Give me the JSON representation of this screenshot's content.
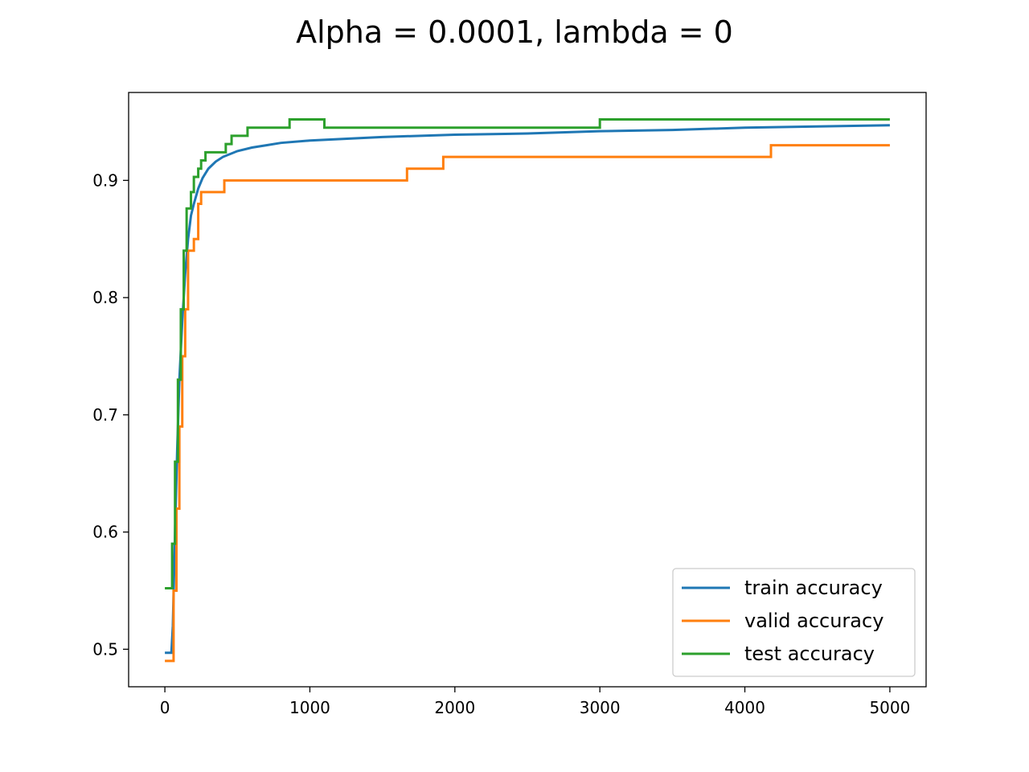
{
  "chart_data": {
    "type": "line",
    "title": "Alpha = 0.0001, lambda = 0",
    "xlabel": "",
    "ylabel": "",
    "xlim": [
      -250,
      5250
    ],
    "ylim": [
      0.468,
      0.975
    ],
    "x_ticks": [
      0,
      1000,
      2000,
      3000,
      4000,
      5000
    ],
    "x_tick_labels": [
      "0",
      "1000",
      "2000",
      "3000",
      "4000",
      "5000"
    ],
    "y_ticks": [
      0.5,
      0.6,
      0.7,
      0.8,
      0.9
    ],
    "y_tick_labels": [
      "0.5",
      "0.6",
      "0.7",
      "0.8",
      "0.9"
    ],
    "grid": false,
    "legend_position": "lower right",
    "series": [
      {
        "name": "train accuracy",
        "color": "#1f77b4",
        "step": false,
        "points": [
          [
            0,
            0.497
          ],
          [
            45,
            0.497
          ],
          [
            55,
            0.52
          ],
          [
            70,
            0.6
          ],
          [
            85,
            0.67
          ],
          [
            100,
            0.73
          ],
          [
            120,
            0.78
          ],
          [
            140,
            0.82
          ],
          [
            160,
            0.85
          ],
          [
            180,
            0.87
          ],
          [
            200,
            0.88
          ],
          [
            230,
            0.893
          ],
          [
            260,
            0.902
          ],
          [
            300,
            0.91
          ],
          [
            350,
            0.916
          ],
          [
            400,
            0.92
          ],
          [
            500,
            0.925
          ],
          [
            600,
            0.928
          ],
          [
            700,
            0.93
          ],
          [
            800,
            0.932
          ],
          [
            1000,
            0.934
          ],
          [
            1500,
            0.937
          ],
          [
            2000,
            0.939
          ],
          [
            2500,
            0.94
          ],
          [
            3000,
            0.942
          ],
          [
            3500,
            0.943
          ],
          [
            4000,
            0.945
          ],
          [
            4500,
            0.946
          ],
          [
            5000,
            0.947
          ]
        ]
      },
      {
        "name": "valid accuracy",
        "color": "#ff7f0e",
        "step": true,
        "points": [
          [
            0,
            0.49
          ],
          [
            60,
            0.49
          ],
          [
            60,
            0.55
          ],
          [
            80,
            0.62
          ],
          [
            100,
            0.69
          ],
          [
            120,
            0.75
          ],
          [
            140,
            0.79
          ],
          [
            160,
            0.84
          ],
          [
            200,
            0.85
          ],
          [
            230,
            0.88
          ],
          [
            250,
            0.89
          ],
          [
            410,
            0.9
          ],
          [
            1670,
            0.91
          ],
          [
            1920,
            0.92
          ],
          [
            4180,
            0.93
          ],
          [
            5000,
            0.93
          ]
        ]
      },
      {
        "name": "test accuracy",
        "color": "#2ca02c",
        "step": true,
        "points": [
          [
            0,
            0.552
          ],
          [
            50,
            0.552
          ],
          [
            50,
            0.59
          ],
          [
            70,
            0.66
          ],
          [
            90,
            0.73
          ],
          [
            110,
            0.79
          ],
          [
            130,
            0.84
          ],
          [
            150,
            0.876
          ],
          [
            180,
            0.89
          ],
          [
            200,
            0.903
          ],
          [
            230,
            0.91
          ],
          [
            250,
            0.917
          ],
          [
            280,
            0.924
          ],
          [
            420,
            0.931
          ],
          [
            460,
            0.938
          ],
          [
            570,
            0.945
          ],
          [
            860,
            0.952
          ],
          [
            1100,
            0.945
          ],
          [
            3000,
            0.952
          ],
          [
            5000,
            0.952
          ]
        ]
      }
    ]
  }
}
